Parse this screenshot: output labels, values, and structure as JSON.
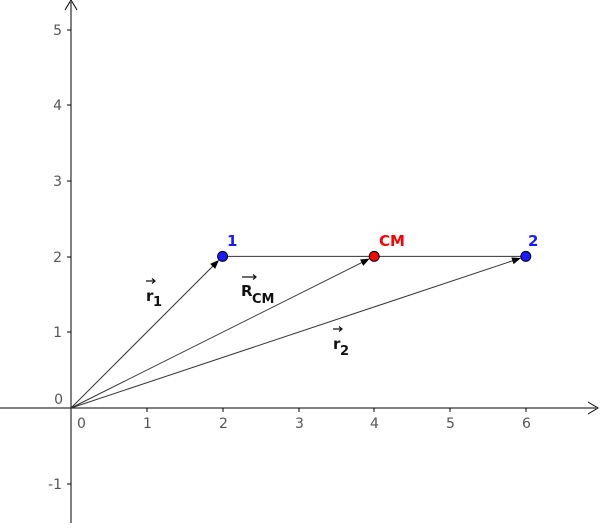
{
  "axes": {
    "x_ticks": [
      "0",
      "1",
      "2",
      "3",
      "4",
      "5",
      "6"
    ],
    "y_ticks": [
      "-1",
      "0",
      "1",
      "2",
      "3",
      "4",
      "5"
    ]
  },
  "points": [
    {
      "id": "p1",
      "label": "1",
      "x": 2,
      "y": 2,
      "color": "#1a1aff"
    },
    {
      "id": "cm",
      "label": "CM",
      "x": 4,
      "y": 2,
      "color": "#ff0000"
    },
    {
      "id": "p2",
      "label": "2",
      "x": 6,
      "y": 2,
      "color": "#1a1aff"
    }
  ],
  "vectors": [
    {
      "id": "r1",
      "from": [
        0,
        0
      ],
      "to": [
        2,
        2
      ]
    },
    {
      "id": "rcm",
      "from": [
        0,
        0
      ],
      "to": [
        4,
        2
      ]
    },
    {
      "id": "r2",
      "from": [
        0,
        0
      ],
      "to": [
        6,
        2
      ]
    }
  ],
  "vector_labels": {
    "r1": {
      "main": "r",
      "sub": "1"
    },
    "rcm": {
      "main": "R",
      "sub": "CM"
    },
    "r2": {
      "main": "r",
      "sub": "2"
    }
  },
  "segment": {
    "from": [
      2,
      2
    ],
    "to": [
      6,
      2
    ]
  },
  "colors": {
    "axis": "#000000",
    "vector": "#333333",
    "segment": "#333333"
  }
}
